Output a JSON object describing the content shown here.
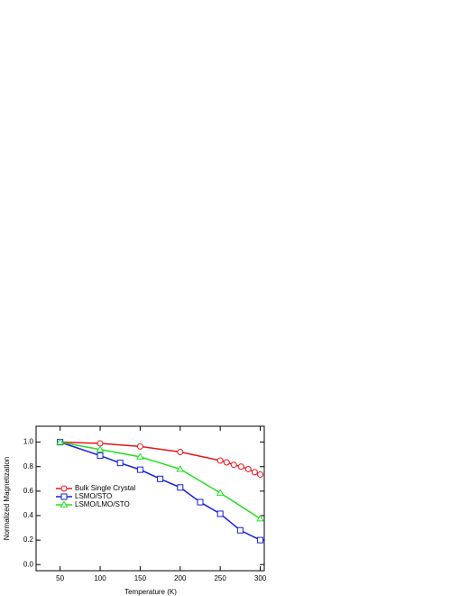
{
  "chart_data": {
    "type": "line",
    "x_label": "Temperature (K)",
    "y_label": "Normalized Magnetization",
    "xlim": [
      20,
      305
    ],
    "xticks": [
      50,
      100,
      150,
      200,
      250,
      300
    ],
    "ylim": [
      -0.05,
      1.13
    ],
    "yticks": [
      {
        "value": 0,
        "label": "0.0"
      },
      0.2,
      0.4,
      0.6,
      0.8,
      {
        "value": 1,
        "label": "1.0"
      }
    ],
    "legend": "left",
    "series": [
      {
        "name": "Bulk Single Crystal",
        "color": "#e8141c",
        "marker": "circle",
        "x": [
          50,
          100,
          150,
          200,
          250,
          258,
          267,
          276,
          285,
          293,
          300
        ],
        "values": [
          1.0,
          0.99,
          0.965,
          0.92,
          0.85,
          0.835,
          0.815,
          0.8,
          0.78,
          0.755,
          0.735
        ]
      },
      {
        "name": "LSMO/STO",
        "color": "#1420d8",
        "marker": "square",
        "x": [
          50,
          100,
          125,
          150,
          175,
          200,
          225,
          250,
          275,
          300
        ],
        "values": [
          1.0,
          0.89,
          0.83,
          0.775,
          0.7,
          0.63,
          0.51,
          0.415,
          0.28,
          0.2
        ]
      },
      {
        "name": "LSMO/LMO/STO",
        "color": "#22e022",
        "marker": "triangle",
        "x": [
          50,
          100,
          150,
          200,
          250,
          300
        ],
        "values": [
          1.0,
          0.94,
          0.88,
          0.78,
          0.585,
          0.375
        ]
      }
    ]
  }
}
